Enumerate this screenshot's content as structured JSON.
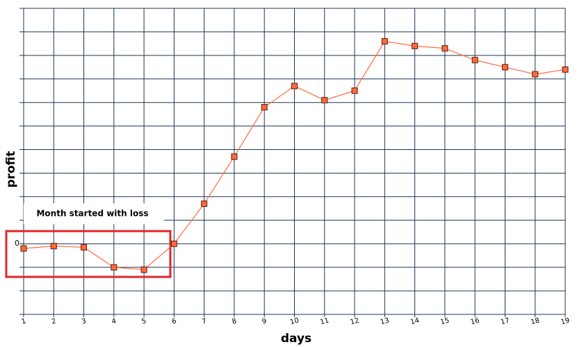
{
  "chart_data": {
    "type": "line",
    "x": [
      1,
      2,
      3,
      4,
      5,
      6,
      7,
      8,
      9,
      10,
      11,
      12,
      13,
      14,
      15,
      16,
      17,
      18,
      19
    ],
    "series": [
      {
        "color": "#ff6a3d",
        "values": [
          -0.2,
          -0.1,
          -0.15,
          -1.0,
          -1.1,
          0,
          1.7,
          3.7,
          5.8,
          6.7,
          6.1,
          6.5,
          8.6,
          8.4,
          8.3,
          7.8,
          7.5,
          7.2,
          7.4
        ]
      }
    ],
    "xlim": [
      1,
      19
    ],
    "xticks": [
      1,
      2,
      3,
      4,
      5,
      6,
      7,
      8,
      9,
      10,
      11,
      12,
      13,
      14,
      15,
      16,
      17,
      18,
      19
    ],
    "ylim": [
      -3,
      10
    ],
    "yticks": [
      {
        "value": -3,
        "label": null
      },
      {
        "value": -2,
        "label": null
      },
      {
        "value": -1,
        "label": null
      },
      0,
      {
        "value": 1,
        "label": null
      },
      {
        "value": 2,
        "label": null
      },
      {
        "value": 3,
        "label": null
      },
      {
        "value": 4,
        "label": null
      },
      {
        "value": 5,
        "label": null
      },
      {
        "value": 6,
        "label": null
      },
      {
        "value": 7,
        "label": null
      },
      {
        "value": 8,
        "label": null
      },
      {
        "value": 9,
        "label": null
      },
      {
        "value": 10,
        "label": null
      }
    ],
    "xlabel": "days",
    "ylabel": "profit",
    "grid": true,
    "annotation": "Month started with loss"
  }
}
